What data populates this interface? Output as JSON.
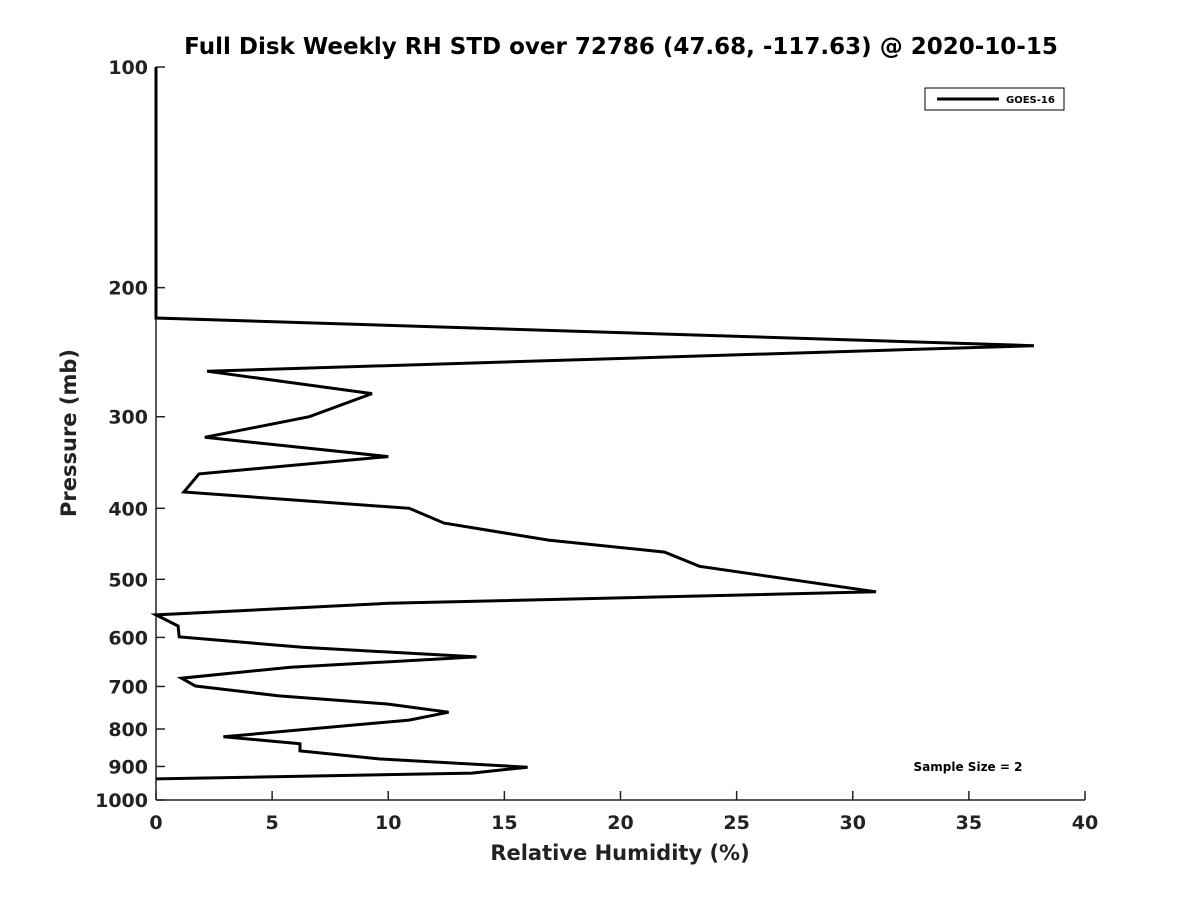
{
  "chart_data": {
    "type": "line",
    "title": "Full Disk Weekly RH STD over 72786 (47.68, -117.63) @ 2020-10-15",
    "xlabel": "Relative Humidity (%)",
    "ylabel": "Pressure (mb)",
    "xlim": [
      0,
      40
    ],
    "ylim": [
      100,
      1000
    ],
    "yscale": "log",
    "y_reversed": true,
    "xticks": [
      "0",
      "5",
      "10",
      "15",
      "20",
      "25",
      "30",
      "35",
      "40"
    ],
    "yticks": [
      "100",
      "200",
      "300",
      "400",
      "500",
      "600",
      "700",
      "800",
      "900",
      "1000"
    ],
    "grid": false,
    "legend": {
      "placement": "top-right",
      "entries": [
        "GOES-16"
      ]
    },
    "annotation": "Sample Size = 2",
    "series": [
      {
        "name": "GOES-16",
        "color": "#000000",
        "points": [
          [
            0,
            100
          ],
          [
            0,
            220
          ],
          [
            37.8,
            240
          ],
          [
            2.2,
            260
          ],
          [
            9.3,
            279
          ],
          [
            6.6,
            300
          ],
          [
            2.1,
            320
          ],
          [
            10.0,
            340
          ],
          [
            1.85,
            359
          ],
          [
            1.2,
            380
          ],
          [
            10.9,
            400
          ],
          [
            12.4,
            419
          ],
          [
            16.9,
            442
          ],
          [
            21.9,
            459
          ],
          [
            23.4,
            480
          ],
          [
            31.0,
            520
          ],
          [
            10.0,
            539
          ],
          [
            0,
            559
          ],
          [
            0.95,
            579
          ],
          [
            1.0,
            599
          ],
          [
            6.3,
            619
          ],
          [
            13.8,
            638
          ],
          [
            5.8,
            659
          ],
          [
            1.1,
            682
          ],
          [
            1.7,
            699
          ],
          [
            5.3,
            721
          ],
          [
            10.0,
            740
          ],
          [
            12.6,
            759
          ],
          [
            10.9,
            778
          ],
          [
            2.9,
            820
          ],
          [
            6.2,
            838
          ],
          [
            6.2,
            857
          ],
          [
            9.6,
            879
          ],
          [
            16.0,
            902
          ],
          [
            13.6,
            919
          ],
          [
            0,
            936
          ]
        ]
      }
    ]
  }
}
